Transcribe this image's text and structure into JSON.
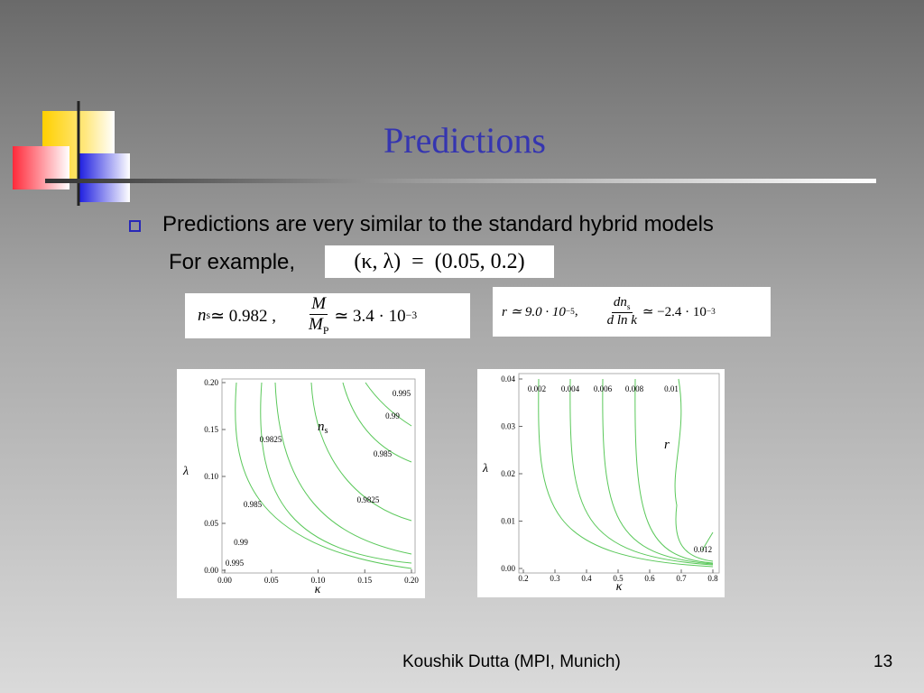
{
  "title": "Predictions",
  "bullet": "Predictions are very similar to the standard hybrid models",
  "example": {
    "lead": "For example,",
    "formula": "(κ, λ)  =  (0.05, 0.2)"
  },
  "formulas": [
    {
      "lhs": "n",
      "lhs_sub": "s",
      "rel": "≃ 0.982 ,"
    },
    {
      "num": "M",
      "den": "M",
      "den_sub": "P",
      "rel": "≃ 3.4 · 10",
      "exp": "−3"
    },
    {
      "lhs": "r ≃ 9.0 · 10",
      "exp": "−5",
      "tail": ","
    },
    {
      "num": "dn",
      "num_sub": "s",
      "den": "d ln k",
      "rel": "≃ −2.4 · 10",
      "exp": "−3"
    }
  ],
  "plots": [
    {
      "xlabel": "κ",
      "ylabel": "λ",
      "label": "n",
      "label_sub": "s",
      "xticks": [
        {
          "value": 0,
          "label": "0.00"
        },
        0.05,
        {
          "value": 0.1,
          "label": "0.10"
        },
        0.15,
        {
          "value": 0.2,
          "label": "0.20"
        }
      ],
      "yticks": [
        {
          "value": 0,
          "label": "0.00"
        },
        0.05,
        {
          "value": 0.1,
          "label": "0.10"
        },
        0.15,
        {
          "value": 0.2,
          "label": "0.20"
        }
      ],
      "contour_labels": [
        "0.995",
        "0.99",
        "0.9825",
        "0.985",
        "0.9825",
        "0.985",
        "0.99",
        "0.995"
      ]
    },
    {
      "xlabel": "κ",
      "ylabel": "λ",
      "label": "r",
      "xticks": [
        0.2,
        0.3,
        0.4,
        0.5,
        0.6,
        0.7,
        0.8
      ],
      "yticks": [
        {
          "value": 0,
          "label": "0.00"
        },
        0.01,
        0.02,
        0.03,
        0.04
      ],
      "contour_labels": [
        "0.002",
        "0.004",
        "0.006",
        "0.008",
        "0.01",
        "0.012"
      ]
    }
  ],
  "footer": {
    "author": "Koushik Dutta (MPI, Munich)",
    "page": "13"
  }
}
